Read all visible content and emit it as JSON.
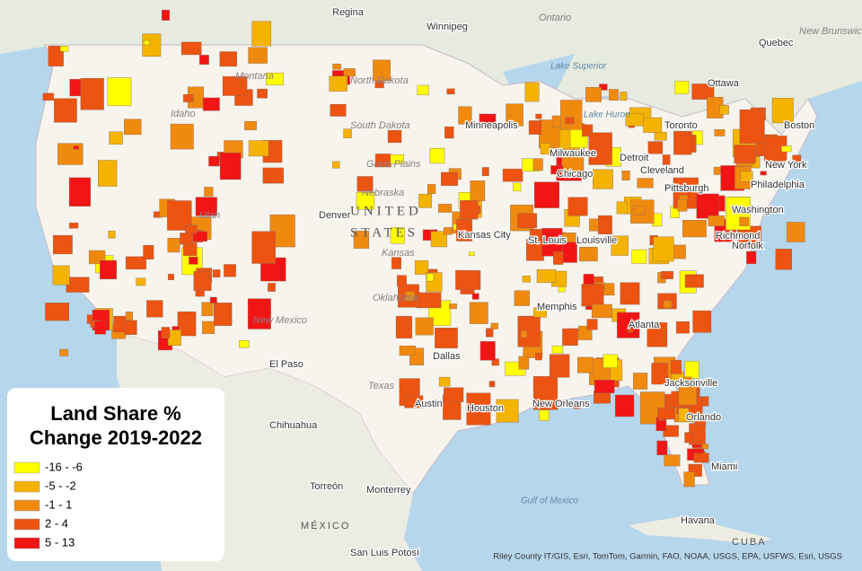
{
  "legend": {
    "title_lines": [
      "Land Share %",
      "Change 2019-2022"
    ],
    "items": [
      {
        "label": "-16 - -6",
        "color": "#ffff00"
      },
      {
        "label": "-5 - -2",
        "color": "#f5b301"
      },
      {
        "label": "-1 - 1",
        "color": "#f08a0f"
      },
      {
        "label": "2 - 4",
        "color": "#ed5311"
      },
      {
        "label": "5 - 13",
        "color": "#f21515"
      }
    ]
  },
  "places": [
    "Regina",
    "Winnipeg",
    "Ontario",
    "Quebec",
    "New Brunswick",
    "Ottawa",
    "Toronto",
    "Boston",
    "New York",
    "Philadelphia",
    "Washington",
    "Richmond",
    "Norfolk",
    "Detroit",
    "Cleveland",
    "Pittsburgh",
    "Chicago",
    "Milwaukee",
    "Minneapolis",
    "North Dakota",
    "South Dakota",
    "Montana",
    "Idaho",
    "Nebraska",
    "Kansas",
    "Kansas City",
    "St. Louis",
    "Louisville",
    "Oklahoma",
    "Memphis",
    "Atlanta",
    "Dallas",
    "Austin",
    "Houston",
    "New Orleans",
    "Jacksonville",
    "Orlando",
    "Miami",
    "Havana",
    "CUBA",
    "Chihuahua",
    "Torreón",
    "Monterrey",
    "MÉXICO",
    "San Luis Potosí",
    "El Paso",
    "New Mexico",
    "Texas",
    "Utah",
    "Great Plains",
    "UNITED",
    "STATES",
    "Lake Superior",
    "Lake Huron",
    "Gulf of Mexico",
    "Denver"
  ],
  "attribution": "Riley County IT/GIS, Esri, TomTom, Garmin, FAO, NOAA, USGS, EPA, USFWS, Esri, USGS"
}
